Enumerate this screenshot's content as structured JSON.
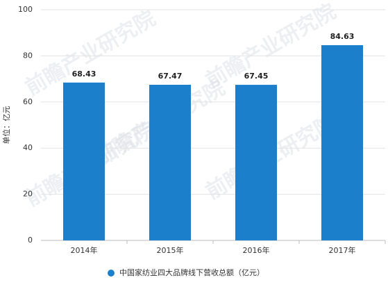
{
  "chart_data": {
    "type": "bar",
    "y_label": "单位：亿元",
    "watermark": "前瞻产业研究院",
    "categories": [
      "2014年",
      "2015年",
      "2016年",
      "2017年"
    ],
    "series": [
      {
        "name": "中国家纺业四大品牌线下营收总额（亿元）",
        "color": "#1b7fcc",
        "values": [
          68.43,
          67.47,
          67.45,
          84.63
        ]
      }
    ],
    "ylim": [
      0,
      100
    ],
    "yticks": [
      0,
      20,
      40,
      60,
      80,
      100
    ],
    "grid": true
  }
}
